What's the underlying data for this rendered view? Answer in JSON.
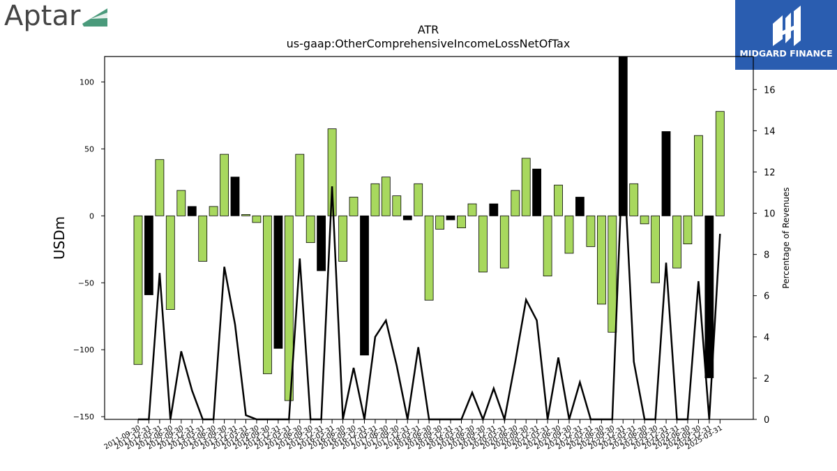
{
  "logos": {
    "left_text": "Aptar",
    "right_text": "MIDGARD FINANCE",
    "left_mark_color": "#4a9a7b",
    "right_bg_color": "#2a5db0"
  },
  "chart_data": {
    "type": "bar",
    "title": "ATR",
    "subtitle": "us-gaap:OtherComprehensiveIncomeLossNetOfTax",
    "ylabel": "USDm",
    "y2label": "Percentage of Revenues",
    "ylim": [
      -152,
      119
    ],
    "y2lim": [
      0,
      17.6
    ],
    "yticks": [
      100,
      50,
      0,
      -50,
      -100,
      -150
    ],
    "y2ticks": [
      0,
      2,
      4,
      6,
      8,
      10,
      12,
      14,
      16
    ],
    "bar_colors": {
      "quarterly": "#a8d85e",
      "annual": "#000000"
    },
    "line_color": "#000000",
    "categories": [
      "2011-09-30",
      "2011-12-31",
      "2012-03-31",
      "2012-06-30",
      "2012-09-30",
      "2012-12-31",
      "2013-03-31",
      "2013-06-30",
      "2013-09-30",
      "2013-12-31",
      "2014-03-31",
      "2014-06-30",
      "2014-09-30",
      "2014-12-31",
      "2015-03-31",
      "2015-06-30",
      "2015-09-30",
      "2015-12-31",
      "2016-03-31",
      "2016-06-30",
      "2016-09-30",
      "2016-12-31",
      "2017-03-31",
      "2017-06-30",
      "2017-09-30",
      "2017-12-31",
      "2018-03-31",
      "2018-06-30",
      "2018-09-30",
      "2018-12-31",
      "2019-03-31",
      "2019-06-30",
      "2019-09-30",
      "2019-12-31",
      "2020-03-31",
      "2020-06-30",
      "2020-09-30",
      "2020-12-31",
      "2021-03-31",
      "2021-06-30",
      "2021-09-30",
      "2021-12-31",
      "2022-03-31",
      "2022-06-30",
      "2022-09-30",
      "2022-12-31",
      "2023-03-31",
      "2023-06-30",
      "2023-09-30",
      "2023-12-31",
      "2024-03-31",
      "2024-06-30",
      "2024-09-30",
      "2024-12-31",
      "2025-03-31"
    ],
    "values": [
      -111,
      -59,
      42,
      -70,
      19,
      7,
      -34,
      7,
      46,
      29,
      1,
      -5,
      -118,
      -99,
      -138,
      46,
      -20,
      -41,
      65,
      -34,
      14,
      -104,
      24,
      29,
      15,
      -3,
      24,
      -63,
      -10,
      -3,
      -9,
      9,
      -42,
      9,
      -39,
      19,
      43,
      35,
      -45,
      23,
      -28,
      14,
      -23,
      -66,
      -87,
      119,
      24,
      -6,
      -50,
      63,
      -39,
      -21,
      60,
      -121,
      78
    ],
    "annual": [
      false,
      true,
      false,
      false,
      false,
      true,
      false,
      false,
      false,
      true,
      false,
      false,
      false,
      true,
      false,
      false,
      false,
      true,
      false,
      false,
      false,
      true,
      false,
      false,
      false,
      true,
      false,
      false,
      false,
      true,
      false,
      false,
      false,
      true,
      false,
      false,
      false,
      true,
      false,
      false,
      false,
      true,
      false,
      false,
      false,
      true,
      false,
      false,
      false,
      true,
      false,
      false,
      false,
      true,
      false
    ],
    "pct_of_revenue": [
      0,
      0,
      7.1,
      0,
      3.3,
      1.4,
      0,
      0,
      7.4,
      4.6,
      0.2,
      0,
      0,
      0,
      0,
      7.8,
      0,
      0,
      11.3,
      0,
      2.5,
      0,
      4.0,
      4.8,
      2.6,
      0,
      3.5,
      0,
      0,
      0,
      0,
      1.3,
      0,
      1.5,
      0,
      2.8,
      5.8,
      4.8,
      0,
      3.0,
      0,
      1.8,
      0,
      0,
      0,
      13.2,
      2.8,
      0,
      0,
      7.6,
      0,
      0,
      6.7,
      0,
      9.0
    ]
  }
}
